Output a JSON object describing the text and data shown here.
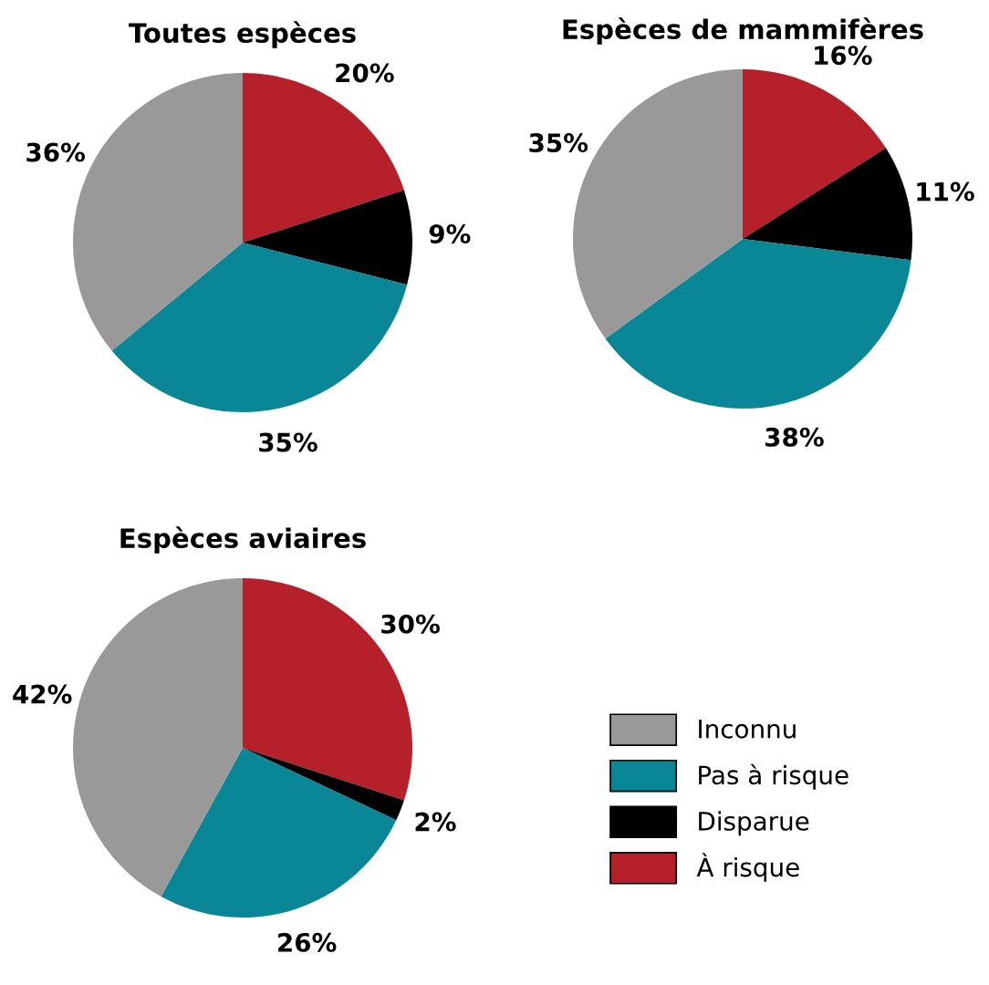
{
  "chart_data": [
    {
      "type": "pie",
      "title": "Toutes espèces",
      "categories": [
        "À risque",
        "Disparue",
        "Pas à risque",
        "Inconnu"
      ],
      "values": [
        20,
        9,
        35,
        36
      ],
      "value_labels": [
        "20%",
        "9%",
        "35%",
        "36%"
      ],
      "colors": [
        "#b5202a",
        "#000000",
        "#0a8796",
        "#999999"
      ],
      "legend": "bottom right"
    },
    {
      "type": "pie",
      "title": "Espèces de mammifères",
      "values": [
        16,
        11,
        38,
        35
      ],
      "value_labels": [
        "16%",
        "11%",
        "38%",
        "35%"
      ],
      "colors": [
        "#b5202a",
        "#000000",
        "#0a8796",
        "#999999"
      ]
    },
    {
      "type": "pie",
      "title": "Espèces aviaires",
      "values": [
        30,
        2,
        26,
        42
      ],
      "value_labels": [
        "30%",
        "2%",
        "26%",
        "42%"
      ],
      "colors": [
        "#b5202a",
        "#000000",
        "#0a8796",
        "#999999"
      ]
    }
  ]
}
